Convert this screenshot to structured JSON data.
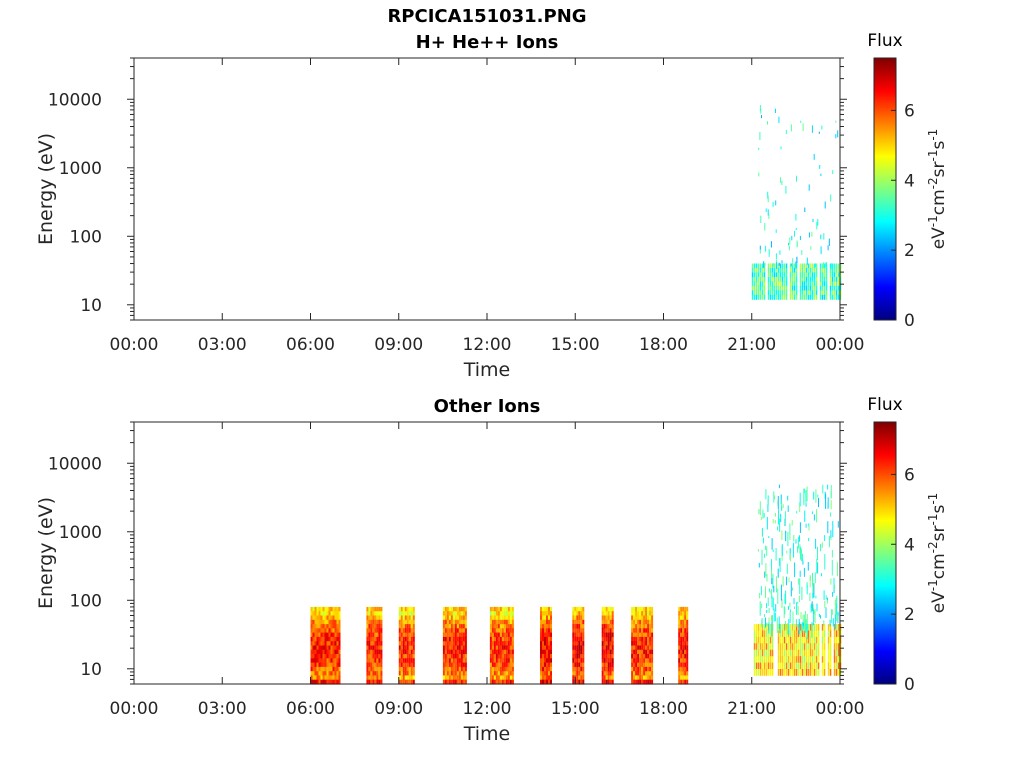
{
  "figure_title": "RPCICA151031.PNG",
  "colors": {
    "background": "#ffffff",
    "axis": "#262626",
    "colormap": [
      "#00007f",
      "#0000ff",
      "#007fff",
      "#00ffff",
      "#7fff7f",
      "#ffff00",
      "#ff7f00",
      "#ff0000",
      "#7f0000"
    ]
  },
  "chart_data": [
    {
      "type": "heatmap",
      "title": "H+ He++ Ions",
      "xlabel": "Time",
      "ylabel": "Energy (eV)",
      "x_tick_labels": [
        "00:00",
        "03:00",
        "06:00",
        "09:00",
        "12:00",
        "15:00",
        "18:00",
        "21:00",
        "00:00"
      ],
      "x_ticks_hours": [
        0,
        3,
        6,
        9,
        12,
        15,
        18,
        21,
        24
      ],
      "xlim_hours": [
        0,
        24
      ],
      "y_scale": "log",
      "ylim": [
        6,
        40000
      ],
      "y_tick_labels": [
        "10",
        "100",
        "1000",
        "10000"
      ],
      "y_ticks": [
        10,
        100,
        1000,
        10000
      ],
      "colorbar": {
        "title": "Flux",
        "label": "eV-1cm-2sr-1s-1",
        "ticks": [
          0,
          2,
          4,
          6
        ],
        "range": [
          0,
          7.5
        ]
      },
      "bursts": [
        {
          "start_hour": 21.0,
          "end_hour": 24.0,
          "core_energy": [
            12,
            40
          ],
          "core_flux": 4.3,
          "sparse_energy_max": 12000,
          "sparse_flux": 2.6
        }
      ]
    },
    {
      "type": "heatmap",
      "title": "Other Ions",
      "xlabel": "Time",
      "ylabel": "Energy (eV)",
      "x_tick_labels": [
        "00:00",
        "03:00",
        "06:00",
        "09:00",
        "12:00",
        "15:00",
        "18:00",
        "21:00",
        "00:00"
      ],
      "x_ticks_hours": [
        0,
        3,
        6,
        9,
        12,
        15,
        18,
        21,
        24
      ],
      "xlim_hours": [
        0,
        24
      ],
      "y_scale": "log",
      "ylim": [
        6,
        40000
      ],
      "y_tick_labels": [
        "10",
        "100",
        "1000",
        "10000"
      ],
      "y_ticks": [
        10,
        100,
        1000,
        10000
      ],
      "colorbar": {
        "title": "Flux",
        "label": "eV-1cm-2sr-1s-1",
        "ticks": [
          0,
          2,
          4,
          6
        ],
        "range": [
          0,
          7.5
        ]
      },
      "bursts": [
        {
          "start_hour": 6.0,
          "end_hour": 7.0,
          "energy": [
            6,
            80
          ],
          "peak_flux": 7.0
        },
        {
          "start_hour": 7.9,
          "end_hour": 8.4,
          "energy": [
            6,
            80
          ],
          "peak_flux": 7.0
        },
        {
          "start_hour": 9.0,
          "end_hour": 9.5,
          "energy": [
            6,
            80
          ],
          "peak_flux": 6.9
        },
        {
          "start_hour": 10.5,
          "end_hour": 11.3,
          "energy": [
            6,
            80
          ],
          "peak_flux": 7.0
        },
        {
          "start_hour": 12.1,
          "end_hour": 12.9,
          "energy": [
            6,
            80
          ],
          "peak_flux": 6.9
        },
        {
          "start_hour": 13.8,
          "end_hour": 14.2,
          "energy": [
            6,
            80
          ],
          "peak_flux": 7.2
        },
        {
          "start_hour": 14.9,
          "end_hour": 15.3,
          "energy": [
            6,
            80
          ],
          "peak_flux": 7.3
        },
        {
          "start_hour": 15.9,
          "end_hour": 16.3,
          "energy": [
            6,
            80
          ],
          "peak_flux": 7.3
        },
        {
          "start_hour": 16.9,
          "end_hour": 17.6,
          "energy": [
            6,
            80
          ],
          "peak_flux": 7.0
        },
        {
          "start_hour": 18.5,
          "end_hour": 18.8,
          "energy": [
            6,
            80
          ],
          "peak_flux": 7.1
        },
        {
          "start_hour": 21.0,
          "end_hour": 24.0,
          "core_energy": [
            8,
            45
          ],
          "core_flux": 5.8,
          "sparse_energy_max": 5000,
          "sparse_flux": 2.8
        }
      ]
    }
  ]
}
